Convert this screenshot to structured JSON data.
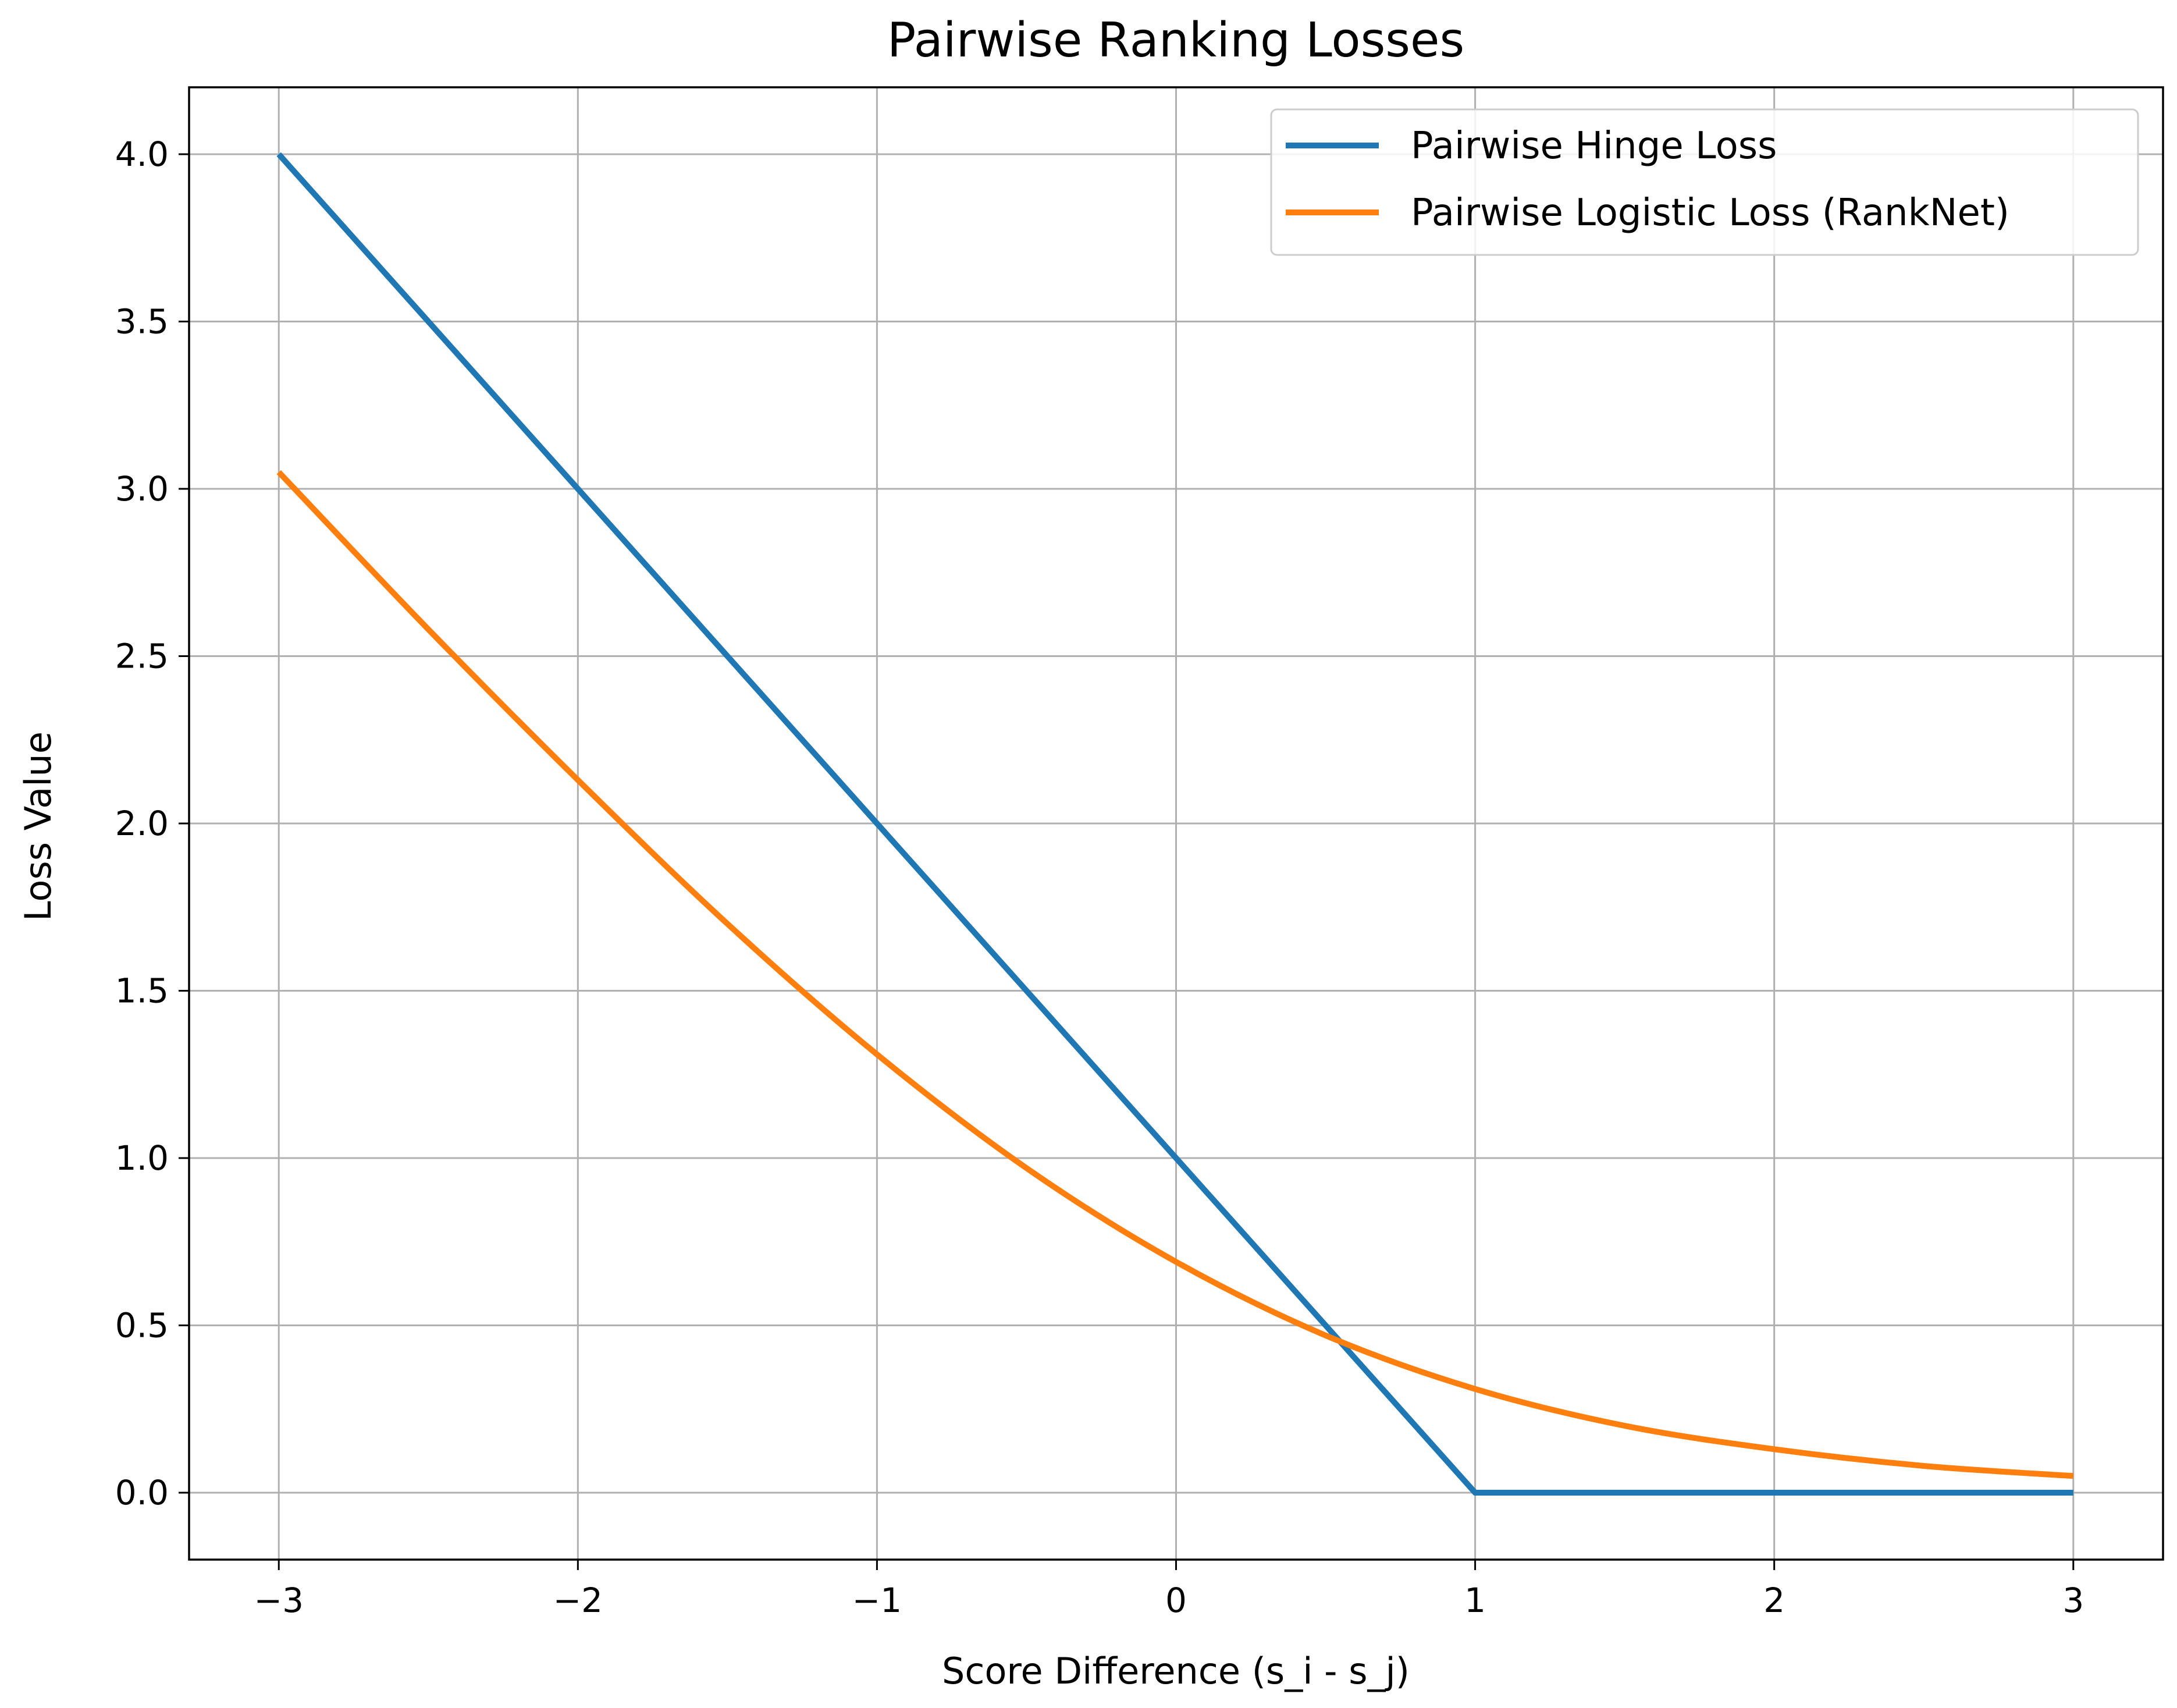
{
  "chart_data": {
    "type": "line",
    "title": "Pairwise Ranking Losses",
    "xlabel": "Score Difference (s_i - s_j)",
    "ylabel": "Loss Value",
    "xlim": [
      -3.3,
      3.3
    ],
    "ylim": [
      -0.2,
      4.2
    ],
    "xticks": [
      -3,
      -2,
      -1,
      0,
      1,
      2,
      3
    ],
    "xtick_labels": [
      "−3",
      "−2",
      "−1",
      "0",
      "1",
      "2",
      "3"
    ],
    "yticks": [
      0.0,
      0.5,
      1.0,
      1.5,
      2.0,
      2.5,
      3.0,
      3.5,
      4.0
    ],
    "ytick_labels": [
      "0.0",
      "0.5",
      "1.0",
      "1.5",
      "2.0",
      "2.5",
      "3.0",
      "3.5",
      "4.0"
    ],
    "grid": true,
    "legend_position": "top-right",
    "series": [
      {
        "name": "Pairwise Hinge Loss",
        "color": "#1f77b4",
        "x": [
          -3,
          -2,
          -1,
          0,
          1,
          2,
          3
        ],
        "y": [
          4.0,
          3.0,
          2.0,
          1.0,
          0.0,
          0.0,
          0.0
        ]
      },
      {
        "name": "Pairwise Logistic Loss (RankNet)",
        "color": "#ff7f0e",
        "x": [
          -3,
          -2.5,
          -2,
          -1.5,
          -1,
          -0.5,
          0,
          0.5,
          1,
          1.5,
          2,
          2.5,
          3
        ],
        "y": [
          3.05,
          2.58,
          2.13,
          1.7,
          1.31,
          0.97,
          0.69,
          0.47,
          0.31,
          0.2,
          0.13,
          0.08,
          0.05
        ]
      }
    ]
  }
}
